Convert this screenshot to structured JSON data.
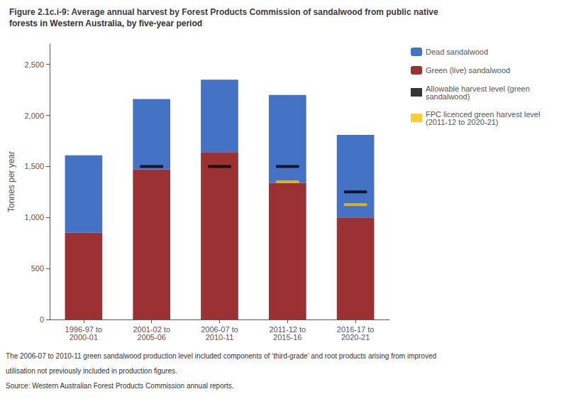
{
  "chart_data": {
    "type": "bar",
    "stacked": true,
    "title": "Figure 2.1c.i-9: Average annual harvest by Forest Products Commission of sandalwood from public native",
    "subtitle": "forests in Western Australia, by five-year period",
    "annotations": [
      "The 2006-07 to 2010-11 green sandalwood production level included components of ‘third-grade’ and root products arising from improved",
      "utilisation not previously included in production figures.",
      "Source: Western Australian Forest Products Commission annual reports."
    ],
    "ylabel": "Tonnes per year",
    "categories": [
      "1996-97 to\n2000-01",
      "2001-02 to\n2005-06",
      "2006-07 to\n2010-11",
      "2011-12 to\n2015-16",
      "2016-17 to\n2020-21"
    ],
    "series": [
      {
        "name": "Green (live) sandalwood",
        "type": "bar",
        "color": "#9B3132",
        "values": [
          850,
          1470,
          1640,
          1340,
          1000
        ]
      },
      {
        "name": "Dead sandalwood",
        "type": "bar",
        "color": "#4472C4",
        "values": [
          760,
          690,
          710,
          860,
          810
        ]
      },
      {
        "name": "Allowable harvest level (green\nsandalwood)",
        "type": "scatter",
        "marker": "hline",
        "color": "#000000",
        "values": [
          null,
          1500,
          1500,
          1500,
          1250
        ]
      },
      {
        "name": "FPC licenced green harvest level\n(2011-12 to 2020-21)",
        "type": "scatter",
        "marker": "hline",
        "color": "#FFC000",
        "values": [
          null,
          null,
          null,
          1350,
          1125
        ]
      }
    ],
    "ylim": [
      0,
      2700
    ],
    "yticks": [
      0,
      500,
      {
        "value": 1000,
        "label": "1,000"
      },
      {
        "value": 1500,
        "label": "1,500"
      },
      {
        "value": 2000,
        "label": "2,000"
      },
      {
        "value": 2500,
        "label": "2,500"
      }
    ],
    "grid": false,
    "legend": "right"
  }
}
